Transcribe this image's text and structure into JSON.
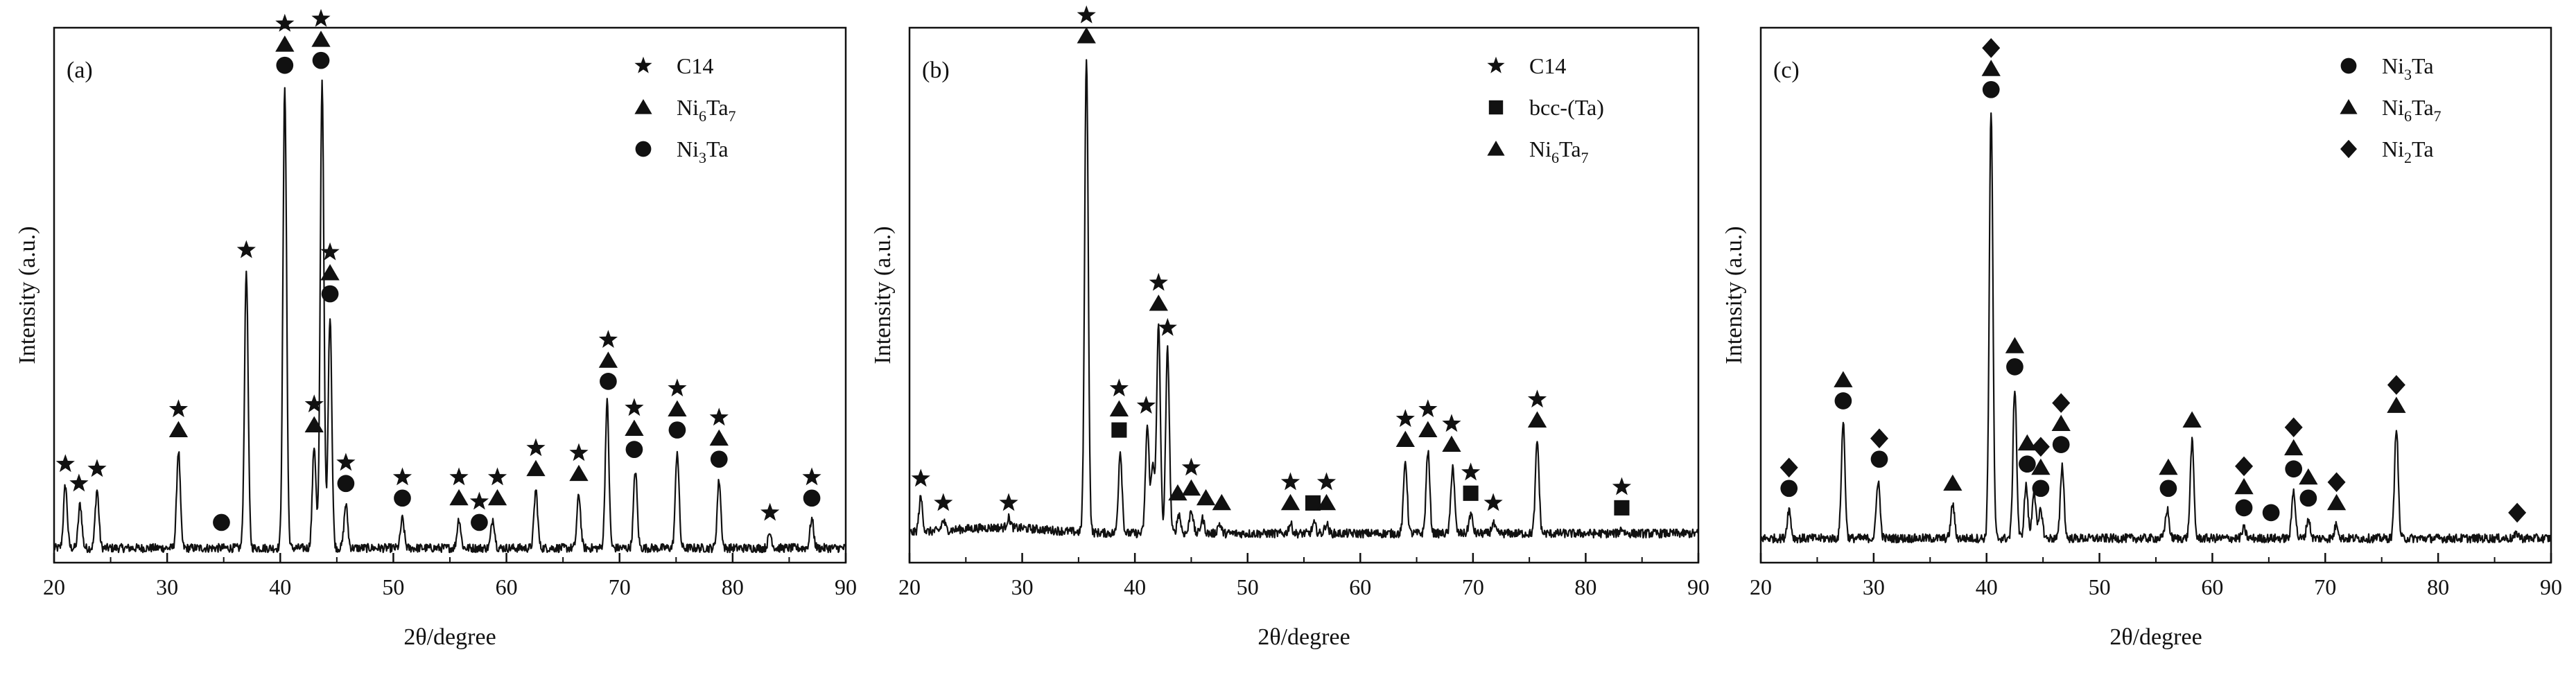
{
  "chart_data": [
    {
      "panel_label": "(a)",
      "type": "line",
      "xlabel": "2θ/degree",
      "ylabel": "Intensity (a.u.)",
      "xlim": [
        20,
        90
      ],
      "ylim": [
        0,
        1.1
      ],
      "x_ticks": [
        "20",
        "30",
        "40",
        "50",
        "60",
        "70",
        "80",
        "90"
      ],
      "legend": {
        "placement": "top-right",
        "entries": [
          {
            "marker": "star",
            "label": "C14"
          },
          {
            "marker": "triangle",
            "label": "Ni6Ta7",
            "base": "Ni",
            "sub1": "6",
            "mid": "Ta",
            "sub2": "7"
          },
          {
            "marker": "circle",
            "label": "Ni3Ta",
            "base": "Ni",
            "sub1": "3",
            "mid": "Ta",
            "sub2": ""
          }
        ]
      },
      "baseline": 0.03,
      "peaks": [
        {
          "x": 21.0,
          "y": 0.13
        },
        {
          "x": 22.3,
          "y": 0.09
        },
        {
          "x": 23.8,
          "y": 0.12
        },
        {
          "x": 31.0,
          "y": 0.2
        },
        {
          "x": 37.0,
          "y": 0.57
        },
        {
          "x": 40.4,
          "y": 0.95
        },
        {
          "x": 43.0,
          "y": 0.21
        },
        {
          "x": 43.7,
          "y": 0.96
        },
        {
          "x": 44.4,
          "y": 0.48
        },
        {
          "x": 45.8,
          "y": 0.09
        },
        {
          "x": 50.8,
          "y": 0.06
        },
        {
          "x": 55.8,
          "y": 0.06
        },
        {
          "x": 58.8,
          "y": 0.06
        },
        {
          "x": 62.6,
          "y": 0.12
        },
        {
          "x": 66.4,
          "y": 0.11
        },
        {
          "x": 68.9,
          "y": 0.3
        },
        {
          "x": 71.4,
          "y": 0.16
        },
        {
          "x": 75.1,
          "y": 0.2
        },
        {
          "x": 78.8,
          "y": 0.14
        },
        {
          "x": 83.3,
          "y": 0.03
        },
        {
          "x": 87.0,
          "y": 0.06
        }
      ],
      "phase_markers": [
        {
          "x": 21.0,
          "stack": [
            "star"
          ]
        },
        {
          "x": 22.2,
          "stack": [
            "star"
          ]
        },
        {
          "x": 23.8,
          "stack": [
            "star"
          ]
        },
        {
          "x": 31.0,
          "stack": [
            "triangle",
            "star"
          ]
        },
        {
          "x": 34.8,
          "stack": [
            "circle"
          ]
        },
        {
          "x": 37.0,
          "stack": [
            "star"
          ]
        },
        {
          "x": 40.4,
          "stack": [
            "circle",
            "triangle",
            "star"
          ]
        },
        {
          "x": 43.0,
          "stack": [
            "triangle",
            "star"
          ]
        },
        {
          "x": 43.6,
          "stack": [
            "circle",
            "triangle",
            "star"
          ]
        },
        {
          "x": 44.4,
          "stack": [
            "circle",
            "triangle",
            "star"
          ]
        },
        {
          "x": 45.8,
          "stack": [
            "circle",
            "star"
          ]
        },
        {
          "x": 50.8,
          "stack": [
            "circle",
            "star"
          ]
        },
        {
          "x": 55.8,
          "stack": [
            "triangle",
            "star"
          ]
        },
        {
          "x": 57.6,
          "stack": [
            "circle",
            "star"
          ]
        },
        {
          "x": 59.2,
          "stack": [
            "triangle",
            "star"
          ]
        },
        {
          "x": 62.6,
          "stack": [
            "triangle",
            "star"
          ]
        },
        {
          "x": 66.4,
          "stack": [
            "triangle",
            "star"
          ]
        },
        {
          "x": 69.0,
          "stack": [
            "circle",
            "triangle",
            "star"
          ]
        },
        {
          "x": 71.3,
          "stack": [
            "circle",
            "triangle",
            "star"
          ]
        },
        {
          "x": 75.1,
          "stack": [
            "circle",
            "triangle",
            "star"
          ]
        },
        {
          "x": 78.8,
          "stack": [
            "circle",
            "triangle",
            "star"
          ]
        },
        {
          "x": 83.3,
          "stack": [
            "star"
          ]
        },
        {
          "x": 87.0,
          "stack": [
            "circle",
            "star"
          ]
        }
      ]
    },
    {
      "panel_label": "(b)",
      "type": "line",
      "xlabel": "2θ/degree",
      "ylabel": "Intensity (a.u.)",
      "xlim": [
        20,
        90
      ],
      "ylim": [
        0,
        1.1
      ],
      "x_ticks": [
        "20",
        "30",
        "40",
        "50",
        "60",
        "70",
        "80",
        "90"
      ],
      "legend": {
        "placement": "top-right",
        "entries": [
          {
            "marker": "star",
            "label": "C14"
          },
          {
            "marker": "square",
            "label": "bcc-(Ta)"
          },
          {
            "marker": "triangle",
            "label": "Ni6Ta7",
            "base": "Ni",
            "sub1": "6",
            "mid": "Ta",
            "sub2": "7"
          }
        ]
      },
      "baseline": 0.06,
      "peaks": [
        {
          "x": 21.0,
          "y": 0.07
        },
        {
          "x": 23.0,
          "y": 0.02
        },
        {
          "x": 28.8,
          "y": 0.02
        },
        {
          "x": 35.7,
          "y": 0.98
        },
        {
          "x": 38.7,
          "y": 0.17
        },
        {
          "x": 41.1,
          "y": 0.22
        },
        {
          "x": 41.6,
          "y": 0.14
        },
        {
          "x": 42.1,
          "y": 0.43
        },
        {
          "x": 42.9,
          "y": 0.38
        },
        {
          "x": 43.9,
          "y": 0.04
        },
        {
          "x": 45.0,
          "y": 0.05
        },
        {
          "x": 46.0,
          "y": 0.03
        },
        {
          "x": 47.5,
          "y": 0.02
        },
        {
          "x": 53.8,
          "y": 0.02
        },
        {
          "x": 55.9,
          "y": 0.02
        },
        {
          "x": 57.0,
          "y": 0.02
        },
        {
          "x": 64.0,
          "y": 0.15
        },
        {
          "x": 66.0,
          "y": 0.17
        },
        {
          "x": 68.2,
          "y": 0.14
        },
        {
          "x": 69.8,
          "y": 0.04
        },
        {
          "x": 71.8,
          "y": 0.02
        },
        {
          "x": 75.7,
          "y": 0.19
        },
        {
          "x": 83.2,
          "y": 0.01
        }
      ],
      "phase_markers": [
        {
          "x": 21.0,
          "stack": [
            "star"
          ]
        },
        {
          "x": 23.0,
          "stack": [
            "star"
          ]
        },
        {
          "x": 28.8,
          "stack": [
            "star"
          ]
        },
        {
          "x": 35.7,
          "stack": [
            "triangle",
            "star"
          ]
        },
        {
          "x": 38.6,
          "stack": [
            "square",
            "triangle",
            "star"
          ]
        },
        {
          "x": 41.0,
          "stack": [
            "star"
          ]
        },
        {
          "x": 42.1,
          "stack": [
            "triangle",
            "star"
          ]
        },
        {
          "x": 42.9,
          "stack": [
            "star"
          ]
        },
        {
          "x": 43.8,
          "stack": [
            "triangle"
          ]
        },
        {
          "x": 45.0,
          "stack": [
            "triangle",
            "star"
          ]
        },
        {
          "x": 46.3,
          "stack": [
            "triangle"
          ]
        },
        {
          "x": 47.7,
          "stack": [
            "triangle"
          ]
        },
        {
          "x": 53.8,
          "stack": [
            "triangle",
            "star"
          ]
        },
        {
          "x": 55.8,
          "stack": [
            "square"
          ]
        },
        {
          "x": 57.0,
          "stack": [
            "triangle",
            "star"
          ]
        },
        {
          "x": 64.0,
          "stack": [
            "triangle",
            "star"
          ]
        },
        {
          "x": 66.0,
          "stack": [
            "triangle",
            "star"
          ]
        },
        {
          "x": 68.1,
          "stack": [
            "triangle",
            "star"
          ]
        },
        {
          "x": 69.8,
          "stack": [
            "square",
            "star"
          ]
        },
        {
          "x": 71.8,
          "stack": [
            "star"
          ]
        },
        {
          "x": 75.7,
          "stack": [
            "triangle",
            "star"
          ]
        },
        {
          "x": 83.2,
          "stack": [
            "square",
            "star"
          ]
        }
      ]
    },
    {
      "panel_label": "(c)",
      "type": "line",
      "xlabel": "2θ/degree",
      "ylabel": "Intensity (a.u.)",
      "xlim": [
        20,
        90
      ],
      "ylim": [
        0,
        1.1
      ],
      "x_ticks": [
        "20",
        "30",
        "40",
        "50",
        "60",
        "70",
        "80",
        "90"
      ],
      "legend": {
        "placement": "top-right",
        "entries": [
          {
            "marker": "circle",
            "label": "Ni3Ta",
            "base": "Ni",
            "sub1": "3",
            "mid": "Ta",
            "sub2": ""
          },
          {
            "marker": "triangle",
            "label": "Ni6Ta7",
            "base": "Ni",
            "sub1": "6",
            "mid": "Ta",
            "sub2": "7"
          },
          {
            "marker": "diamond",
            "label": "Ni2Ta",
            "base": "Ni",
            "sub1": "2",
            "mid": "Ta",
            "sub2": ""
          }
        ]
      },
      "baseline": 0.05,
      "peaks": [
        {
          "x": 22.5,
          "y": 0.06
        },
        {
          "x": 27.3,
          "y": 0.24
        },
        {
          "x": 30.4,
          "y": 0.12
        },
        {
          "x": 37.0,
          "y": 0.07
        },
        {
          "x": 40.4,
          "y": 0.88
        },
        {
          "x": 42.5,
          "y": 0.31
        },
        {
          "x": 43.5,
          "y": 0.11
        },
        {
          "x": 44.2,
          "y": 0.1
        },
        {
          "x": 44.8,
          "y": 0.06
        },
        {
          "x": 46.7,
          "y": 0.15
        },
        {
          "x": 56.0,
          "y": 0.06
        },
        {
          "x": 58.2,
          "y": 0.2
        },
        {
          "x": 62.8,
          "y": 0.02
        },
        {
          "x": 67.2,
          "y": 0.1
        },
        {
          "x": 68.5,
          "y": 0.04
        },
        {
          "x": 71.0,
          "y": 0.03
        },
        {
          "x": 76.3,
          "y": 0.23
        },
        {
          "x": 87.0,
          "y": 0.01
        }
      ],
      "phase_markers": [
        {
          "x": 22.5,
          "stack": [
            "circle",
            "diamond"
          ]
        },
        {
          "x": 27.3,
          "stack": [
            "circle",
            "triangle"
          ]
        },
        {
          "x": 30.5,
          "stack": [
            "circle",
            "diamond"
          ]
        },
        {
          "x": 37.0,
          "stack": [
            "triangle"
          ]
        },
        {
          "x": 40.4,
          "stack": [
            "circle",
            "triangle",
            "diamond"
          ]
        },
        {
          "x": 42.5,
          "stack": [
            "circle",
            "triangle"
          ]
        },
        {
          "x": 43.6,
          "stack": [
            "circle",
            "triangle"
          ]
        },
        {
          "x": 44.8,
          "stack": [
            "circle",
            "triangle",
            "diamond"
          ]
        },
        {
          "x": 46.6,
          "stack": [
            "circle",
            "triangle",
            "diamond"
          ]
        },
        {
          "x": 56.1,
          "stack": [
            "circle",
            "triangle"
          ]
        },
        {
          "x": 58.2,
          "stack": [
            "triangle"
          ]
        },
        {
          "x": 62.8,
          "stack": [
            "circle",
            "triangle",
            "diamond"
          ]
        },
        {
          "x": 65.2,
          "stack": [
            "circle"
          ]
        },
        {
          "x": 67.2,
          "stack": [
            "circle",
            "triangle",
            "diamond"
          ]
        },
        {
          "x": 68.5,
          "stack": [
            "circle",
            "triangle"
          ]
        },
        {
          "x": 71.0,
          "stack": [
            "triangle",
            "diamond"
          ]
        },
        {
          "x": 76.3,
          "stack": [
            "triangle",
            "diamond"
          ]
        },
        {
          "x": 87.0,
          "stack": [
            "diamond"
          ]
        }
      ]
    }
  ]
}
